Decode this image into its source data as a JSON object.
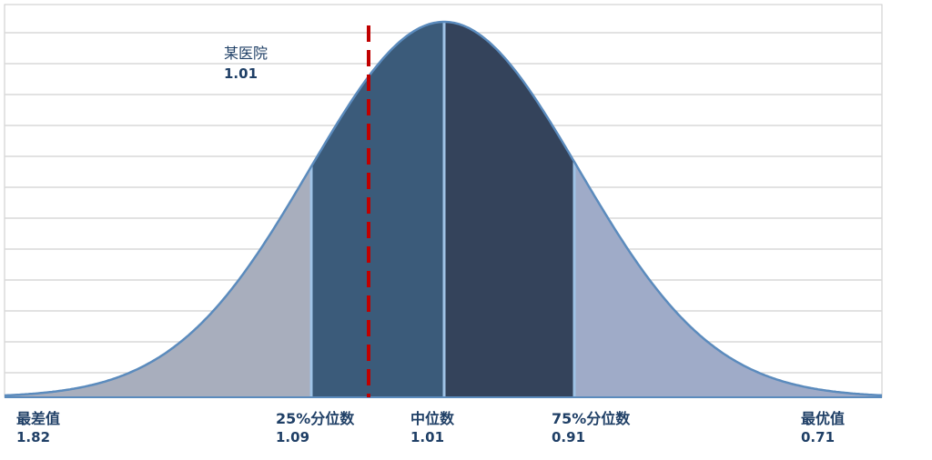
{
  "chart_data": {
    "type": "area",
    "description_shape": "normal distribution curve",
    "marker": {
      "label": "某医院",
      "value": "1.01"
    },
    "points": [
      {
        "label": "最差值",
        "value": "1.82"
      },
      {
        "label": "25%分位数",
        "value": "1.09"
      },
      {
        "label": "中位数",
        "value": "1.01"
      },
      {
        "label": "75%分位数",
        "value": "0.91"
      },
      {
        "label": "最优值",
        "value": "0.71"
      }
    ],
    "bands": [
      {
        "from": "最差值",
        "to": "25%分位数",
        "color": "#a8aebd"
      },
      {
        "from": "25%分位数",
        "to": "中位数",
        "color": "#3b5b7a"
      },
      {
        "from": "中位数",
        "to": "75%分位数",
        "color": "#34435b"
      },
      {
        "from": "75%分位数",
        "to": "最优值",
        "color": "#9fabc8"
      }
    ],
    "grid": true,
    "colors": {
      "outline": "#5b8bbd",
      "marker_line": "#c00000",
      "text": "#1f3f66",
      "grid": "#d9d9d9"
    }
  }
}
